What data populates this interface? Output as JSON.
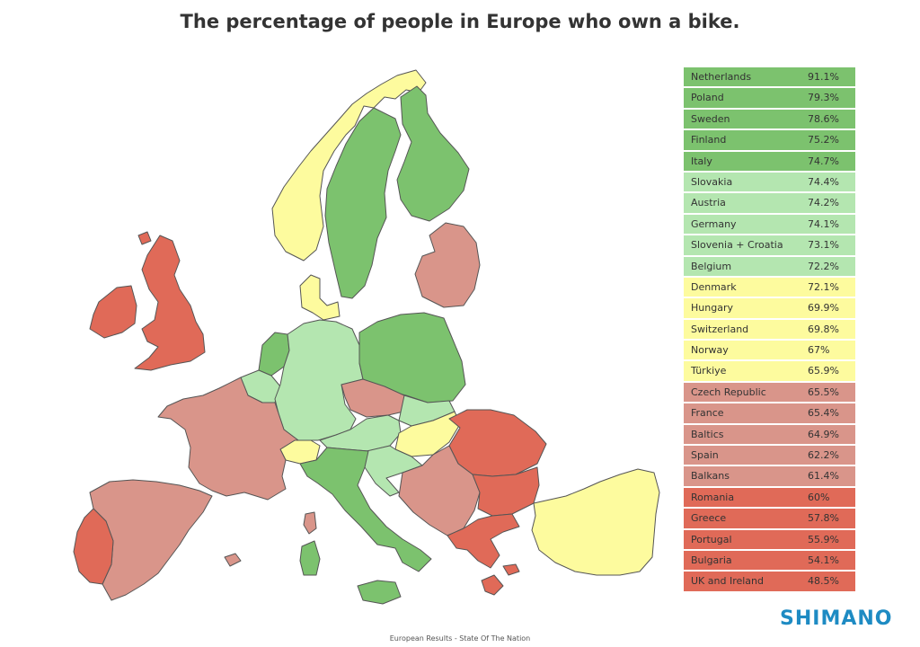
{
  "title": "The percentage of people in Europe who own a bike.",
  "footer": "European Results - State Of The Nation",
  "logo": "SHIMANO",
  "colors": {
    "high": "#7cc26e",
    "mid_high": "#b4e6b0",
    "mid": "#fdfb9e",
    "mid_low": "#d9958a",
    "low": "#e06a58"
  },
  "legend": [
    {
      "name": "Netherlands",
      "value": "91.1%",
      "band": "high"
    },
    {
      "name": "Poland",
      "value": "79.3%",
      "band": "high"
    },
    {
      "name": "Sweden",
      "value": "78.6%",
      "band": "high"
    },
    {
      "name": "Finland",
      "value": "75.2%",
      "band": "high"
    },
    {
      "name": "Italy",
      "value": "74.7%",
      "band": "high"
    },
    {
      "name": "Slovakia",
      "value": "74.4%",
      "band": "mid_high"
    },
    {
      "name": "Austria",
      "value": "74.2%",
      "band": "mid_high"
    },
    {
      "name": "Germany",
      "value": "74.1%",
      "band": "mid_high"
    },
    {
      "name": "Slovenia + Croatia",
      "value": "73.1%",
      "band": "mid_high"
    },
    {
      "name": "Belgium",
      "value": "72.2%",
      "band": "mid_high"
    },
    {
      "name": "Denmark",
      "value": "72.1%",
      "band": "mid"
    },
    {
      "name": "Hungary",
      "value": "69.9%",
      "band": "mid"
    },
    {
      "name": "Switzerland",
      "value": "69.8%",
      "band": "mid"
    },
    {
      "name": "Norway",
      "value": "67%",
      "band": "mid"
    },
    {
      "name": "Türkiye",
      "value": "65.9%",
      "band": "mid"
    },
    {
      "name": "Czech Republic",
      "value": "65.5%",
      "band": "mid_low"
    },
    {
      "name": "France",
      "value": "65.4%",
      "band": "mid_low"
    },
    {
      "name": "Baltics",
      "value": "64.9%",
      "band": "mid_low"
    },
    {
      "name": "Spain",
      "value": "62.2%",
      "band": "mid_low"
    },
    {
      "name": "Balkans",
      "value": "61.4%",
      "band": "mid_low"
    },
    {
      "name": "Romania",
      "value": "60%",
      "band": "low"
    },
    {
      "name": "Greece",
      "value": "57.8%",
      "band": "low"
    },
    {
      "name": "Portugal",
      "value": "55.9%",
      "band": "low"
    },
    {
      "name": "Bulgaria",
      "value": "54.1%",
      "band": "low"
    },
    {
      "name": "UK and Ireland",
      "value": "48.5%",
      "band": "low"
    }
  ]
}
